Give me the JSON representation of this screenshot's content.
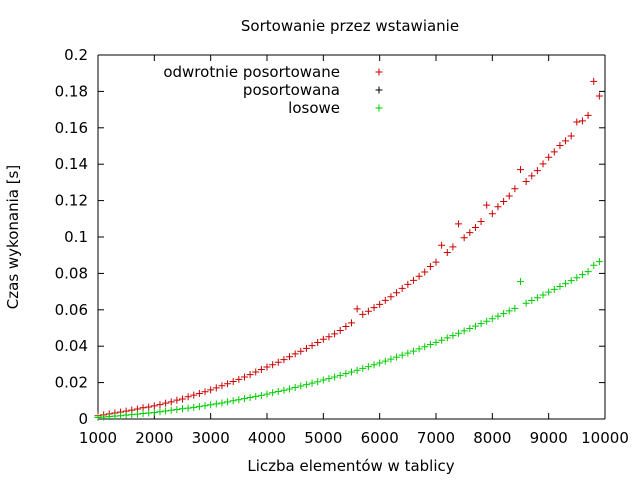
{
  "chart_data": {
    "type": "scatter",
    "title": "Sortowanie przez wstawianie",
    "xlabel": "Liczba elementów w tablicy",
    "ylabel": "Czas wykonania [s]",
    "xlim": [
      1000,
      10000
    ],
    "ylim": [
      0,
      0.2
    ],
    "xticks": [
      1000,
      2000,
      3000,
      4000,
      5000,
      6000,
      7000,
      8000,
      9000,
      10000
    ],
    "yticks": [
      0,
      0.02,
      0.04,
      0.06,
      0.08,
      0.1,
      0.12,
      0.14,
      0.16,
      0.18,
      0.2
    ],
    "xtick_labels": [
      "1000",
      "2000",
      "3000",
      "4000",
      "5000",
      "6000",
      "7000",
      "8000",
      "9000",
      "10000"
    ],
    "ytick_labels": [
      "0",
      "0.02",
      "0.04",
      "0.06",
      "0.08",
      "0.1",
      "0.12",
      "0.14",
      "0.16",
      "0.18",
      "0.2"
    ],
    "grid": false,
    "legend_position": "top-left",
    "series": [
      {
        "name": "odwrotnie posortowane",
        "color": "#cc0000",
        "marker": "plus",
        "x": [
          1000,
          1100,
          1200,
          1300,
          1400,
          1500,
          1600,
          1700,
          1800,
          1900,
          2000,
          2100,
          2200,
          2300,
          2400,
          2500,
          2600,
          2700,
          2800,
          2900,
          3000,
          3100,
          3200,
          3300,
          3400,
          3500,
          3600,
          3700,
          3800,
          3900,
          4000,
          4100,
          4200,
          4300,
          4400,
          4500,
          4600,
          4700,
          4800,
          4900,
          5000,
          5100,
          5200,
          5300,
          5400,
          5500,
          5600,
          5700,
          5800,
          5900,
          6000,
          6100,
          6200,
          6300,
          6400,
          6500,
          6600,
          6700,
          6800,
          6900,
          7000,
          7100,
          7200,
          7300,
          7400,
          7500,
          7600,
          7700,
          7800,
          7900,
          8000,
          8100,
          8200,
          8300,
          8400,
          8500,
          8600,
          8700,
          8800,
          8900,
          9000,
          9100,
          9200,
          9300,
          9400,
          9500,
          9600,
          9700,
          9800,
          9900
        ],
        "y": [
          0.0018,
          0.0023,
          0.0028,
          0.0033,
          0.0038,
          0.0043,
          0.0049,
          0.0055,
          0.0062,
          0.0066,
          0.0072,
          0.0079,
          0.0087,
          0.0094,
          0.0104,
          0.011,
          0.0122,
          0.0131,
          0.014,
          0.015,
          0.016,
          0.0171,
          0.0183,
          0.0194,
          0.0206,
          0.0218,
          0.0231,
          0.0244,
          0.0258,
          0.0272,
          0.0286,
          0.0298,
          0.0312,
          0.0326,
          0.0342,
          0.0358,
          0.0372,
          0.0388,
          0.0403,
          0.042,
          0.0438,
          0.0452,
          0.0468,
          0.0486,
          0.0508,
          0.0528,
          0.0605,
          0.0575,
          0.0592,
          0.0612,
          0.063,
          0.0652,
          0.0672,
          0.0694,
          0.0718,
          0.074,
          0.0762,
          0.0784,
          0.0808,
          0.0838,
          0.0862,
          0.0955,
          0.0915,
          0.0946,
          0.1072,
          0.0996,
          0.1024,
          0.1052,
          0.1085,
          0.1175,
          0.1128,
          0.1166,
          0.1195,
          0.1225,
          0.1265,
          0.137,
          0.1305,
          0.1336,
          0.1365,
          0.1402,
          0.1438,
          0.1468,
          0.1503,
          0.1528,
          0.1555,
          0.1632,
          0.1638,
          0.1668,
          0.1855,
          0.1775
        ]
      },
      {
        "name": "posortowana",
        "color": "#000000",
        "marker": "plus",
        "x": [],
        "y": []
      },
      {
        "name": "losowe",
        "color": "#00cc00",
        "marker": "plus",
        "x": [
          1000,
          1100,
          1200,
          1300,
          1400,
          1500,
          1600,
          1700,
          1800,
          1900,
          2000,
          2100,
          2200,
          2300,
          2400,
          2500,
          2600,
          2700,
          2800,
          2900,
          3000,
          3100,
          3200,
          3300,
          3400,
          3500,
          3600,
          3700,
          3800,
          3900,
          4000,
          4100,
          4200,
          4300,
          4400,
          4500,
          4600,
          4700,
          4800,
          4900,
          5000,
          5100,
          5200,
          5300,
          5400,
          5500,
          5600,
          5700,
          5800,
          5900,
          6000,
          6100,
          6200,
          6300,
          6400,
          6500,
          6600,
          6700,
          6800,
          6900,
          7000,
          7100,
          7200,
          7300,
          7400,
          7500,
          7600,
          7700,
          7800,
          7900,
          8000,
          8100,
          8200,
          8300,
          8400,
          8500,
          8600,
          8700,
          8800,
          8900,
          9000,
          9100,
          9200,
          9300,
          9400,
          9500,
          9600,
          9700,
          9800,
          9900
        ],
        "y": [
          0.0008,
          0.0011,
          0.0013,
          0.0016,
          0.0018,
          0.0021,
          0.0024,
          0.0027,
          0.003,
          0.0033,
          0.0036,
          0.004,
          0.0044,
          0.0048,
          0.0052,
          0.0056,
          0.006,
          0.0064,
          0.0068,
          0.0073,
          0.0078,
          0.0083,
          0.0088,
          0.0094,
          0.01,
          0.0106,
          0.0112,
          0.0118,
          0.0124,
          0.013,
          0.0137,
          0.0144,
          0.0151,
          0.0158,
          0.0165,
          0.0173,
          0.0181,
          0.0189,
          0.0197,
          0.0205,
          0.0214,
          0.0222,
          0.0231,
          0.024,
          0.0249,
          0.0258,
          0.0268,
          0.0278,
          0.0288,
          0.0298,
          0.0308,
          0.0318,
          0.0329,
          0.034,
          0.0351,
          0.0362,
          0.0373,
          0.0385,
          0.0397,
          0.0409,
          0.0421,
          0.0433,
          0.0446,
          0.0458,
          0.0471,
          0.0484,
          0.0497,
          0.051,
          0.0524,
          0.0537,
          0.0551,
          0.0565,
          0.0579,
          0.0594,
          0.0608,
          0.0755,
          0.0636,
          0.0651,
          0.0666,
          0.0681,
          0.0697,
          0.0712,
          0.0728,
          0.0744,
          0.076,
          0.0776,
          0.0793,
          0.081,
          0.0845,
          0.0865
        ]
      }
    ]
  }
}
